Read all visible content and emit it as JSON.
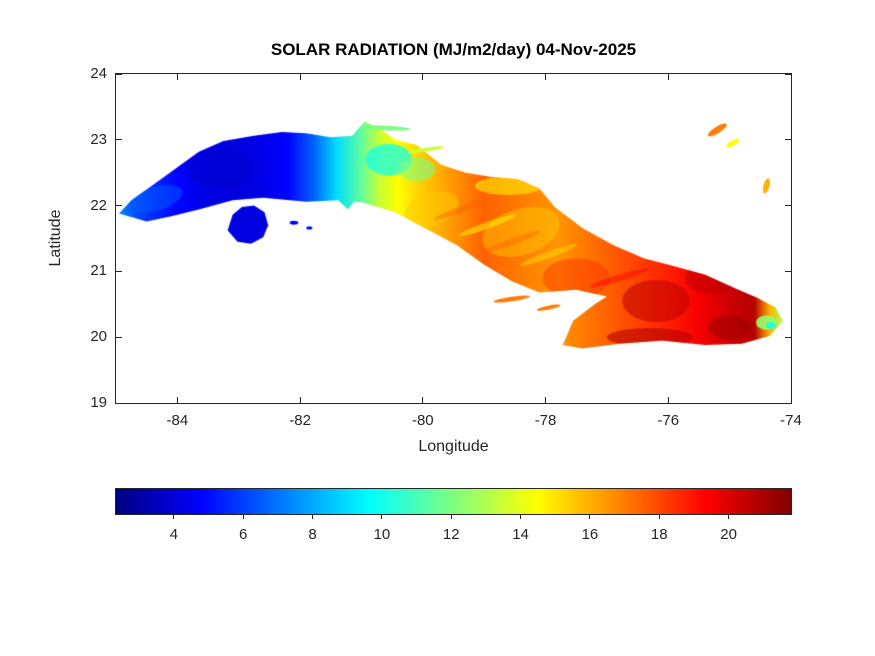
{
  "chart_data": {
    "type": "heatmap",
    "title": "SOLAR RADIATION (MJ/m2/day) 04-Nov-2025",
    "xlabel": "Longitude",
    "ylabel": "Latitude",
    "xlim": [
      -85,
      -74
    ],
    "ylim": [
      19,
      24
    ],
    "xticks": [
      -84,
      -82,
      -80,
      -78,
      -76,
      -74
    ],
    "yticks": [
      19,
      20,
      21,
      22,
      23,
      24
    ],
    "grid": false,
    "colormap": "jet",
    "colorbar": {
      "orientation": "horizontal",
      "position": "bottom",
      "ticks": [
        4,
        6,
        8,
        10,
        12,
        14,
        16,
        18,
        20
      ],
      "vmin": 2.33,
      "vmax": 21.8,
      "units": "MJ/m2/day"
    },
    "regions": {
      "main_island": {
        "name": "Cuba main island",
        "polygon": [
          [
            -84.95,
            21.88
          ],
          [
            -84.75,
            22.08
          ],
          [
            -84.45,
            22.28
          ],
          [
            -84.05,
            22.55
          ],
          [
            -83.65,
            22.82
          ],
          [
            -83.25,
            22.98
          ],
          [
            -82.75,
            23.06
          ],
          [
            -82.3,
            23.12
          ],
          [
            -81.9,
            23.1
          ],
          [
            -81.5,
            23.04
          ],
          [
            -81.15,
            23.06
          ],
          [
            -80.95,
            23.28
          ],
          [
            -80.72,
            23.18
          ],
          [
            -80.45,
            23.0
          ],
          [
            -80.1,
            22.92
          ],
          [
            -79.7,
            22.62
          ],
          [
            -79.3,
            22.5
          ],
          [
            -78.9,
            22.44
          ],
          [
            -78.45,
            22.4
          ],
          [
            -78.1,
            22.26
          ],
          [
            -77.85,
            21.98
          ],
          [
            -77.4,
            21.66
          ],
          [
            -76.9,
            21.4
          ],
          [
            -76.4,
            21.2
          ],
          [
            -75.9,
            21.08
          ],
          [
            -75.4,
            20.95
          ],
          [
            -74.95,
            20.76
          ],
          [
            -74.55,
            20.6
          ],
          [
            -74.25,
            20.45
          ],
          [
            -74.13,
            20.25
          ],
          [
            -74.35,
            20.02
          ],
          [
            -74.8,
            19.9
          ],
          [
            -75.4,
            19.88
          ],
          [
            -76.1,
            19.95
          ],
          [
            -76.8,
            19.9
          ],
          [
            -77.4,
            19.83
          ],
          [
            -77.72,
            19.88
          ],
          [
            -77.55,
            20.25
          ],
          [
            -77.2,
            20.5
          ],
          [
            -77.0,
            20.62
          ],
          [
            -77.5,
            20.72
          ],
          [
            -78.1,
            20.68
          ],
          [
            -78.55,
            20.85
          ],
          [
            -79.0,
            21.1
          ],
          [
            -79.45,
            21.4
          ],
          [
            -79.95,
            21.65
          ],
          [
            -80.45,
            21.9
          ],
          [
            -81.0,
            22.05
          ],
          [
            -81.12,
            22.06
          ],
          [
            -81.22,
            21.94
          ],
          [
            -81.38,
            22.08
          ],
          [
            -81.9,
            22.06
          ],
          [
            -82.6,
            22.12
          ],
          [
            -83.1,
            22.08
          ],
          [
            -83.65,
            21.94
          ],
          [
            -84.1,
            21.84
          ],
          [
            -84.5,
            21.76
          ]
        ],
        "value_stops": [
          [
            -85,
            7.5
          ],
          [
            -84.6,
            6
          ],
          [
            -84,
            4.8
          ],
          [
            -83.4,
            4.2
          ],
          [
            -82.8,
            4.2
          ],
          [
            -82.2,
            4.8
          ],
          [
            -81.8,
            6.5
          ],
          [
            -81.4,
            9
          ],
          [
            -81,
            11.5
          ],
          [
            -80.7,
            13.5
          ],
          [
            -80.4,
            14.5
          ],
          [
            -80,
            15.5
          ],
          [
            -79.5,
            16.5
          ],
          [
            -79,
            17.5
          ],
          [
            -78.4,
            17
          ],
          [
            -77.8,
            16.5
          ],
          [
            -77,
            17.5
          ],
          [
            -76.2,
            18.5
          ],
          [
            -75.5,
            19.5
          ],
          [
            -75,
            20.3
          ],
          [
            -74.6,
            20.8
          ],
          [
            -74.35,
            16
          ],
          [
            -74.15,
            13
          ]
        ]
      },
      "isla_juventud": {
        "name": "Isla de la Juventud",
        "polygon": [
          [
            -83.18,
            21.62
          ],
          [
            -83.1,
            21.86
          ],
          [
            -82.95,
            21.98
          ],
          [
            -82.75,
            22.0
          ],
          [
            -82.58,
            21.9
          ],
          [
            -82.52,
            21.7
          ],
          [
            -82.6,
            21.52
          ],
          [
            -82.8,
            21.42
          ],
          [
            -83.02,
            21.45
          ]
        ],
        "value": 4.2
      },
      "patches": [
        {
          "lon": -83.3,
          "lat": 22.55,
          "rx": 0.55,
          "ry": 0.3,
          "rot": 0,
          "value": 3.8,
          "alpha": 0.55
        },
        {
          "lon": -84.35,
          "lat": 22.1,
          "rx": 0.45,
          "ry": 0.18,
          "rot": -0.3,
          "value": 6.5,
          "alpha": 0.5
        },
        {
          "lon": -80.55,
          "lat": 22.7,
          "rx": 0.38,
          "ry": 0.24,
          "rot": 0,
          "value": 10,
          "alpha": 0.75
        },
        {
          "lon": -80.1,
          "lat": 22.55,
          "rx": 0.3,
          "ry": 0.18,
          "rot": 0,
          "value": 12,
          "alpha": 0.6
        },
        {
          "lon": -79.85,
          "lat": 21.95,
          "rx": 0.45,
          "ry": 0.25,
          "rot": -0.3,
          "value": 15.5,
          "alpha": 0.5
        },
        {
          "lon": -78.6,
          "lat": 22.3,
          "rx": 0.55,
          "ry": 0.14,
          "rot": 0,
          "value": 14.8,
          "alpha": 0.6
        },
        {
          "lon": -78.4,
          "lat": 21.6,
          "rx": 0.65,
          "ry": 0.35,
          "rot": -0.3,
          "value": 15.5,
          "alpha": 0.45
        },
        {
          "lon": -77.5,
          "lat": 20.9,
          "rx": 0.55,
          "ry": 0.3,
          "rot": 0,
          "value": 18.5,
          "alpha": 0.45
        },
        {
          "lon": -76.2,
          "lat": 20.55,
          "rx": 0.55,
          "ry": 0.32,
          "rot": 0,
          "value": 20.6,
          "alpha": 0.55
        },
        {
          "lon": -75.3,
          "lat": 20.9,
          "rx": 0.42,
          "ry": 0.25,
          "rot": 0,
          "value": 20.8,
          "alpha": 0.5
        },
        {
          "lon": -76.3,
          "lat": 20.0,
          "rx": 0.7,
          "ry": 0.14,
          "rot": 0,
          "value": 20.8,
          "alpha": 0.6
        },
        {
          "lon": -75.0,
          "lat": 20.15,
          "rx": 0.35,
          "ry": 0.18,
          "rot": 0,
          "value": 21.2,
          "alpha": 0.55
        },
        {
          "lon": -74.4,
          "lat": 20.22,
          "rx": 0.17,
          "ry": 0.11,
          "rot": 0,
          "value": 12.5,
          "alpha": 0.9
        },
        {
          "lon": -74.33,
          "lat": 20.18,
          "rx": 0.08,
          "ry": 0.05,
          "rot": 0,
          "value": 10,
          "alpha": 0.9
        },
        {
          "lon": -79.35,
          "lat": 21.95,
          "rx": 0.5,
          "ry": 0.05,
          "rot": -0.35,
          "value": 17.5,
          "alpha": 0.5
        },
        {
          "lon": -78.95,
          "lat": 21.7,
          "rx": 0.5,
          "ry": 0.05,
          "rot": -0.35,
          "value": 14.5,
          "alpha": 0.5
        },
        {
          "lon": -78.55,
          "lat": 21.45,
          "rx": 0.5,
          "ry": 0.05,
          "rot": -0.35,
          "value": 17.5,
          "alpha": 0.45
        },
        {
          "lon": -77.95,
          "lat": 21.25,
          "rx": 0.5,
          "ry": 0.05,
          "rot": -0.35,
          "value": 15,
          "alpha": 0.45
        },
        {
          "lon": -76.8,
          "lat": 20.9,
          "rx": 0.5,
          "ry": 0.05,
          "rot": -0.3,
          "value": 19.5,
          "alpha": 0.45
        }
      ],
      "cays": [
        {
          "lon": -80.6,
          "lat": 23.18,
          "rx": 0.4,
          "ry": 0.035,
          "rot": 0.05,
          "value": 12,
          "alpha": 1
        },
        {
          "lon": -79.95,
          "lat": 22.85,
          "rx": 0.3,
          "ry": 0.03,
          "rot": -0.15,
          "value": 13.5,
          "alpha": 1
        },
        {
          "lon": -75.2,
          "lat": 23.15,
          "rx": 0.18,
          "ry": 0.05,
          "rot": -0.55,
          "value": 17,
          "alpha": 1
        },
        {
          "lon": -74.95,
          "lat": 22.95,
          "rx": 0.12,
          "ry": 0.04,
          "rot": -0.55,
          "value": 14.5,
          "alpha": 1
        },
        {
          "lon": -74.4,
          "lat": 22.3,
          "rx": 0.05,
          "ry": 0.12,
          "rot": 0.25,
          "value": 16,
          "alpha": 1
        },
        {
          "lon": -78.55,
          "lat": 20.58,
          "rx": 0.3,
          "ry": 0.035,
          "rot": -0.15,
          "value": 17,
          "alpha": 1
        },
        {
          "lon": -77.95,
          "lat": 20.45,
          "rx": 0.2,
          "ry": 0.03,
          "rot": -0.2,
          "value": 17,
          "alpha": 1
        },
        {
          "lon": -82.1,
          "lat": 21.74,
          "rx": 0.07,
          "ry": 0.03,
          "rot": 0,
          "value": 4.5,
          "alpha": 1
        },
        {
          "lon": -81.85,
          "lat": 21.66,
          "rx": 0.05,
          "ry": 0.025,
          "rot": 0,
          "value": 5,
          "alpha": 1
        }
      ]
    }
  }
}
